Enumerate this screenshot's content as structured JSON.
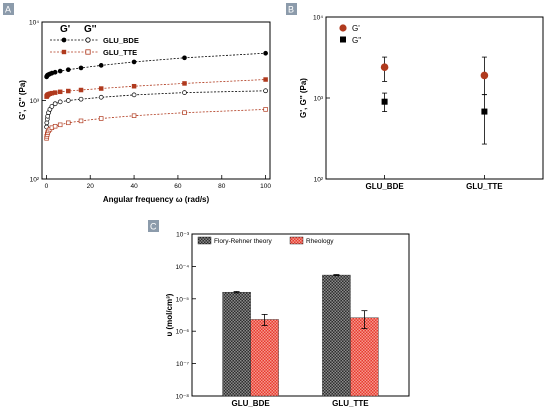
{
  "chart_data": [
    {
      "panel": "A",
      "type": "line",
      "xlabel": "Angular frequency ω (rad/s)",
      "ylabel": "G', G'' (Pa)",
      "xlim": [
        -2,
        102
      ],
      "ylim_log10": [
        2,
        4
      ],
      "x_ticks": [
        0,
        20,
        40,
        60,
        80,
        100
      ],
      "y_ticks": [
        "10²",
        "10³",
        "10⁴"
      ],
      "legend_headers": [
        "G'",
        "G''"
      ],
      "legend_labels": [
        "GLU_BDE",
        "GLU_TTE"
      ],
      "legend_position": "top-left",
      "x": [
        0.1,
        0.2,
        0.4,
        0.6,
        1,
        1.6,
        2.5,
        4,
        6.3,
        10,
        15.8,
        25,
        40,
        63,
        100
      ],
      "series": [
        {
          "name": "GLU_BDE",
          "modulus": "G'",
          "color": "#000000",
          "marker": "filled-circle",
          "values": [
            2000,
            2040,
            2080,
            2110,
            2140,
            2180,
            2230,
            2290,
            2370,
            2470,
            2600,
            2800,
            3100,
            3500,
            4000
          ]
        },
        {
          "name": "GLU_BDE",
          "modulus": "G''",
          "color": "#000000",
          "marker": "open-circle",
          "values": [
            460,
            520,
            580,
            630,
            700,
            770,
            840,
            910,
            960,
            1000,
            1040,
            1100,
            1180,
            1260,
            1330
          ]
        },
        {
          "name": "GLU_TTE",
          "modulus": "G'",
          "color": "#b03a1e",
          "marker": "filled-square",
          "values": [
            1120,
            1140,
            1160,
            1180,
            1200,
            1220,
            1240,
            1260,
            1290,
            1320,
            1360,
            1420,
            1520,
            1650,
            1850
          ]
        },
        {
          "name": "GLU_TTE",
          "modulus": "G''",
          "color": "#b03a1e",
          "marker": "open-square",
          "values": [
            330,
            350,
            370,
            390,
            410,
            430,
            450,
            470,
            490,
            520,
            550,
            590,
            640,
            700,
            770
          ]
        }
      ]
    },
    {
      "panel": "B",
      "type": "scatter",
      "ylabel": "G', G'' (Pa)",
      "ylim_log10": [
        2,
        4
      ],
      "y_ticks": [
        "10²",
        "10³",
        "10⁴"
      ],
      "categories": [
        "GLU_BDE",
        "GLU_TTE"
      ],
      "legend_position": "top-left",
      "series": [
        {
          "name": "G'",
          "color": "#b03a1e",
          "marker": "filled-circle",
          "values": [
            2400,
            1900
          ],
          "err_low": [
            1600,
            1100
          ],
          "err_high": [
            3200,
            3200
          ]
        },
        {
          "name": "G''",
          "color": "#000000",
          "marker": "filled-square",
          "values": [
            900,
            680
          ],
          "err_low": [
            680,
            270
          ],
          "err_high": [
            1150,
            1100
          ]
        }
      ]
    },
    {
      "panel": "C",
      "type": "bar",
      "ylabel": "υ (mol/cm³)",
      "ylim_log10": [
        -8,
        -3
      ],
      "y_ticks": [
        "10⁻⁸",
        "10⁻⁷",
        "10⁻⁶",
        "10⁻⁵",
        "10⁻⁴",
        "10⁻³"
      ],
      "categories": [
        "GLU_BDE",
        "GLU_TTE"
      ],
      "legend_position": "top-left",
      "series": [
        {
          "name": "Flory-Rehner theory",
          "color": "#4a4a4a",
          "pattern": "checker-dark",
          "values": [
            1.6e-05,
            5.4e-05
          ],
          "err": [
            8e-07,
            2e-06
          ]
        },
        {
          "name": "Rheology",
          "color": "#e8392f",
          "pattern": "checker-red",
          "values": [
            2.3e-06,
            2.6e-06
          ],
          "err_low": [
            1.5e-06,
            1.2e-06
          ],
          "err_high": [
            3.3e-06,
            4.3e-06
          ]
        }
      ]
    }
  ]
}
